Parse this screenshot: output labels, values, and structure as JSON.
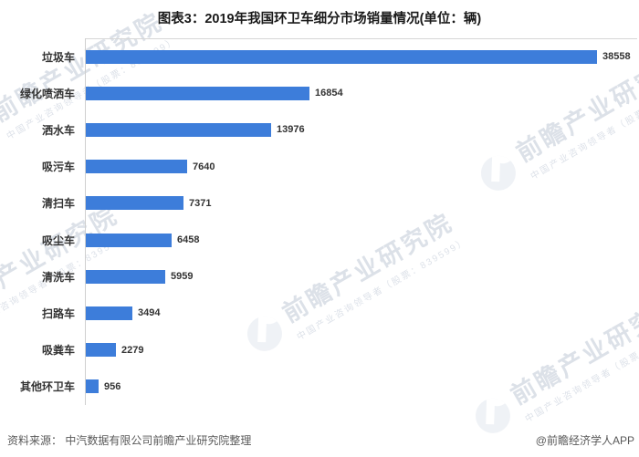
{
  "title": "图表3：2019年我国环卫车细分市场销量情况(单位：辆)",
  "chart_data": {
    "type": "bar",
    "orientation": "horizontal",
    "title": "图表3：2019年我国环卫车细分市场销量情况(单位：辆)",
    "unit": "辆",
    "categories": [
      "垃圾车",
      "绿化喷洒车",
      "洒水车",
      "吸污车",
      "清扫车",
      "吸尘车",
      "清洗车",
      "扫路车",
      "吸粪车",
      "其他环卫车"
    ],
    "values": [
      38558,
      16854,
      13976,
      7640,
      7371,
      6458,
      5959,
      3494,
      2279,
      956
    ],
    "value_labels": true,
    "xlim": [
      0,
      40000
    ],
    "grid": false,
    "legend": false
  },
  "footer": {
    "source": "资料来源： 中汽数据有限公司前瞻产业研究院整理",
    "credit": "@前瞻经济学人APP"
  },
  "watermark": {
    "main": "前瞻产业研究院",
    "sub": "中国产业咨询领导者（股票：839599）",
    "logo": "qianzhan-logo"
  },
  "colors": {
    "bar": "#3d7dda",
    "axis": "#cfcfcf",
    "title_text": "#1a1a1a",
    "label_text": "#333333",
    "footer_text": "#595959",
    "watermark_text": "#b3bdce"
  }
}
